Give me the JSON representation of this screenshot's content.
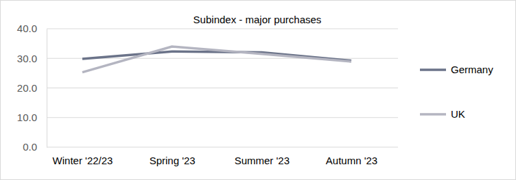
{
  "chart_data": {
    "type": "line",
    "title": "Subindex - major purchases",
    "categories": [
      "Winter '22/23",
      "Spring '23",
      "Summer '23",
      "Autumn '23"
    ],
    "series": [
      {
        "name": "Germany",
        "color": "#6b7389",
        "values": [
          29.8,
          32.3,
          32.0,
          29.2
        ]
      },
      {
        "name": "UK",
        "color": "#b4b5c1",
        "values": [
          25.3,
          34.0,
          31.5,
          28.9
        ]
      }
    ],
    "ylim": [
      0,
      40
    ],
    "yticks": [
      {
        "value": 0,
        "label": "0.0"
      },
      {
        "value": 10,
        "label": "10.0"
      },
      {
        "value": 20,
        "label": "20.0"
      },
      {
        "value": 30,
        "label": "30.0"
      },
      {
        "value": 40,
        "label": "40.0"
      }
    ],
    "grid": true,
    "legend": "right"
  }
}
